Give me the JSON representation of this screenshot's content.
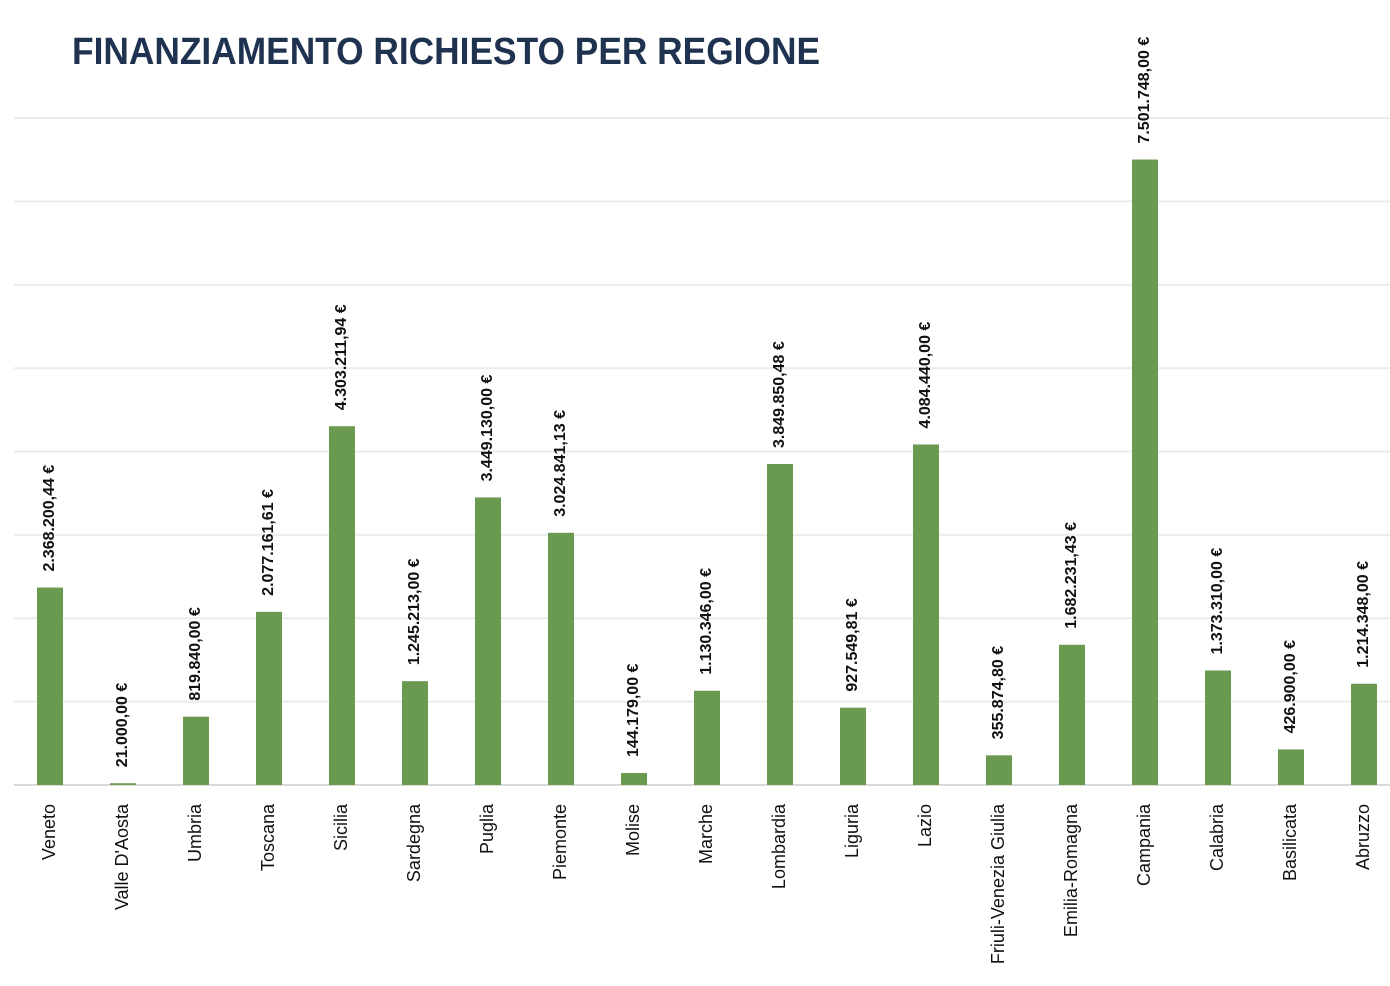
{
  "chart_data": {
    "type": "bar",
    "title": "FINANZIAMENTO RICHIESTO PER REGIONE",
    "categories": [
      "Veneto",
      "Valle D'Aosta",
      "Umbria",
      "Toscana",
      "Sicilia",
      "Sardegna",
      "Puglia",
      "Piemonte",
      "Molise",
      "Marche",
      "Lombardia",
      "Liguria",
      "Lazio",
      "Friuli-Venezia Giulia",
      "Emilia-Romagna",
      "Campania",
      "Calabria",
      "Basilicata",
      "Abruzzo"
    ],
    "values": [
      2368200.44,
      21000,
      819840,
      2077161.61,
      4303211.94,
      1245213,
      3449130,
      3024841.13,
      144179,
      1130346,
      3849850.48,
      927549.81,
      4084440,
      355874.8,
      1682231.43,
      7501748,
      1373310,
      426900,
      1214348
    ],
    "value_labels": [
      "2.368.200,44 €",
      "21.000,00 €",
      "819.840,00 €",
      "2.077.161,61 €",
      "4.303.211,94 €",
      "1.245.213,00 €",
      "3.449.130,00 €",
      "3.024.841,13 €",
      "144.179,00 €",
      "1.130.346,00 €",
      "3.849.850,48 €",
      "927.549,81 €",
      "4.084.440,00 €",
      "355.874,80 €",
      "1.682.231,43 €",
      "7.501.748,00 €",
      "1.373.310,00 €",
      "426.900,00 €",
      "1.214.348,00 €"
    ],
    "color": "#6a9a4f",
    "ylim": [
      0,
      8000000
    ],
    "gridlines": [
      0,
      1000000,
      2000000,
      3000000,
      4000000,
      5000000,
      6000000,
      7000000,
      8000000
    ],
    "grid": true
  }
}
